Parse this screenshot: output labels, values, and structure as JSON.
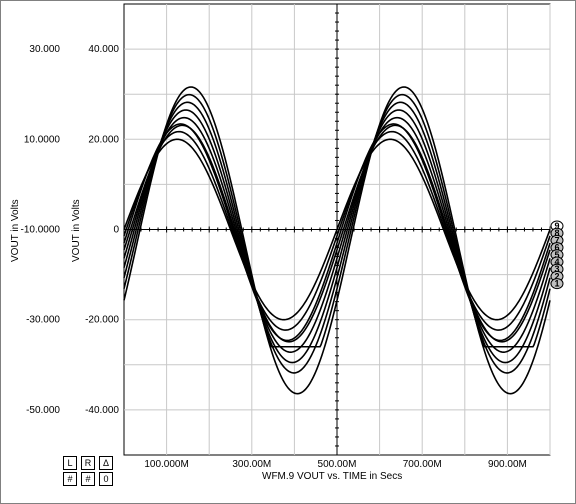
{
  "chart_data": {
    "type": "line",
    "left_axis": {
      "title": "VOUT in Volts",
      "ticks": [
        30,
        10,
        -10,
        -30,
        -50
      ],
      "tick_labels": [
        "30.000",
        "10.0000",
        "-10.0000",
        "-30.000",
        "-50.000"
      ]
    },
    "right_axis": {
      "title": "VOUT in Volts",
      "ticks": [
        40,
        20,
        0,
        -20,
        -40
      ],
      "tick_labels": [
        "40.000",
        "20.000",
        "0",
        "-20.000",
        "-40.000"
      ],
      "ylim": [
        -50,
        50
      ]
    },
    "x_axis": {
      "title": "WFM.9   VOUT vs. TIME in Secs",
      "ticks": [
        0.1,
        0.3,
        0.5,
        0.7,
        0.9
      ],
      "tick_labels": [
        "100.000M",
        "300.00M",
        "500.00M",
        "700.00M",
        "900.00M"
      ],
      "xlim": [
        0.0,
        1.0
      ]
    },
    "grid": true,
    "series": [
      {
        "label": "1",
        "amplitude": 20,
        "clip": -40.5,
        "offset": 0
      },
      {
        "label": "2",
        "amplitude": 22,
        "clip": -40.5,
        "offset": 1
      },
      {
        "label": "3",
        "amplitude": 24,
        "clip": -40.5,
        "offset": 2
      },
      {
        "label": "4",
        "amplitude": 24,
        "clip": -26,
        "offset": 3
      },
      {
        "label": "5",
        "amplitude": 26,
        "clip": -40.5,
        "offset": 4
      },
      {
        "label": "6",
        "amplitude": 28,
        "clip": -40.5,
        "offset": 5
      },
      {
        "label": "7",
        "amplitude": 30,
        "clip": -40.5,
        "offset": 6
      },
      {
        "label": "8",
        "amplitude": 32,
        "clip": -26,
        "offset": 7
      },
      {
        "label": "9",
        "amplitude": 34,
        "clip": -40.5,
        "offset": 8
      }
    ]
  },
  "controls": {
    "l": "L",
    "r": "R",
    "delta": "Δ",
    "hash1": "#",
    "hash2": "#",
    "zero": "0"
  }
}
